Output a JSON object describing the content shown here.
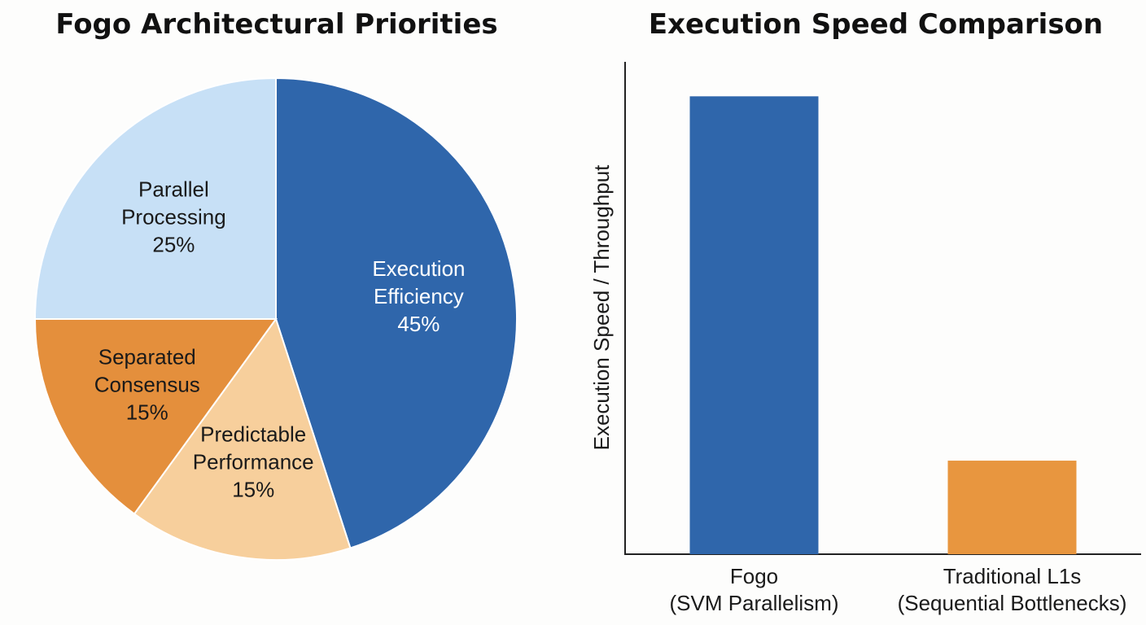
{
  "chart_data": [
    {
      "type": "pie",
      "title": "Fogo Architectural Priorities",
      "start_angle_deg": 0,
      "direction": "clockwise",
      "slices": [
        {
          "label": [
            "Execution",
            "Efficiency"
          ],
          "value": 45,
          "value_label": "45%",
          "color": "#2f66ab",
          "text_color": "#ffffff"
        },
        {
          "label": [
            "Predictable",
            "Performance"
          ],
          "value": 15,
          "value_label": "15%",
          "color": "#f7cf9c",
          "text_color": "#1a1a1a"
        },
        {
          "label": [
            "Separated",
            "Consensus"
          ],
          "value": 15,
          "value_label": "15%",
          "color": "#e48f3c",
          "text_color": "#1a1a1a"
        },
        {
          "label": [
            "Parallel",
            "Processing"
          ],
          "value": 25,
          "value_label": "25%",
          "color": "#c7e0f6",
          "text_color": "#1a1a1a"
        }
      ]
    },
    {
      "type": "bar",
      "title": "Execution Speed Comparison",
      "ylabel": "Execution Speed / Throughput",
      "xlabel": "",
      "ylim": [
        0,
        100
      ],
      "y_ticks_shown": false,
      "grid": false,
      "categories": [
        [
          "Fogo",
          "(SVM Parallelism)"
        ],
        [
          "Traditional L1s",
          "(Sequential Bottlenecks)"
        ]
      ],
      "values": [
        93,
        19
      ],
      "colors": [
        "#2f66ab",
        "#e8963f"
      ]
    }
  ]
}
